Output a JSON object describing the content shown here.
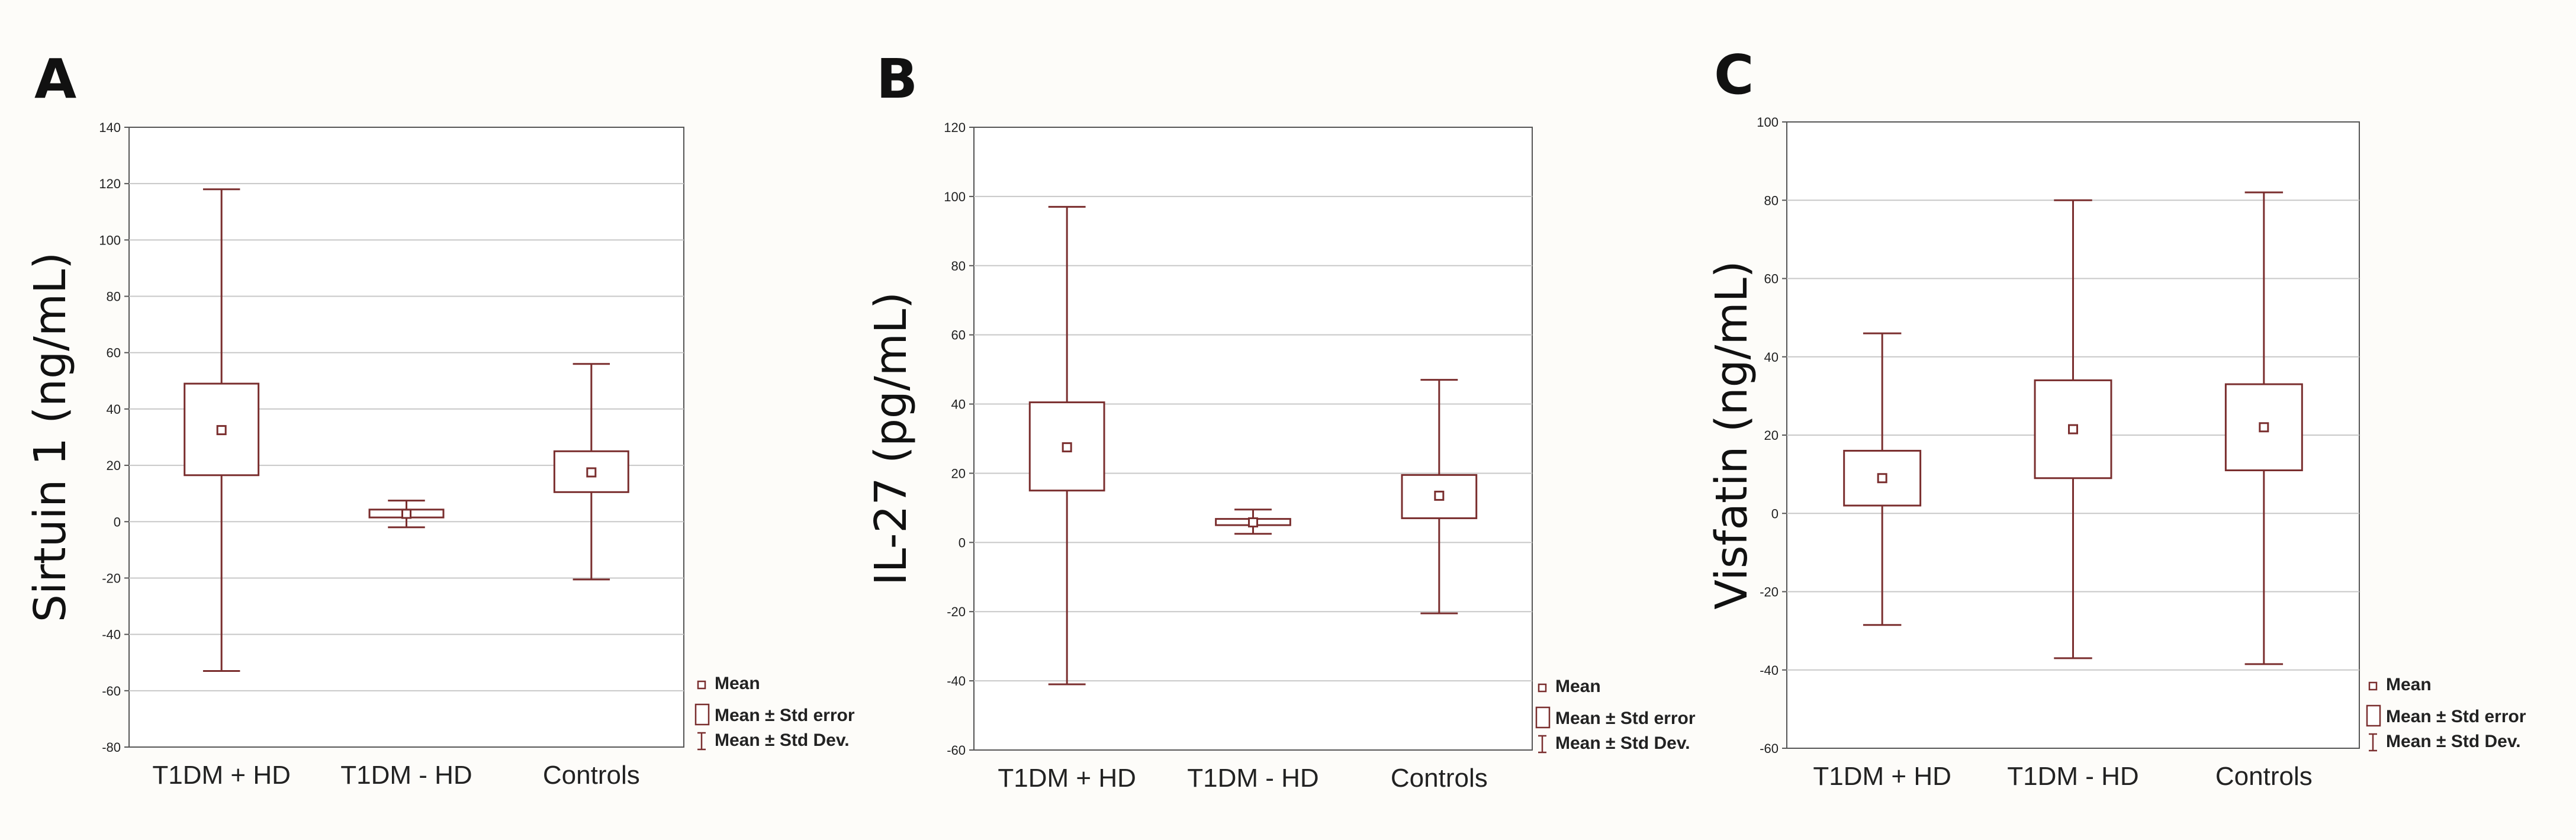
{
  "colors": {
    "mark": "#7a2e2e",
    "grid": "#c8c8c8",
    "frame": "#555555",
    "background": "#fdfcf9"
  },
  "legend": {
    "mean": "Mean",
    "se": "Mean ± Std error",
    "sd": "Mean ± Std Dev."
  },
  "chart_data": [
    {
      "panel_letter": "A",
      "type": "box",
      "ylabel": "Sirtuin 1 (ng/mL)",
      "ylim": [
        -80,
        140
      ],
      "yticks": [
        -80,
        -60,
        -40,
        -20,
        0,
        20,
        40,
        60,
        80,
        100,
        120,
        140
      ],
      "grid": true,
      "legend_position": "bottom-right",
      "categories": [
        "T1DM + HD",
        "T1DM - HD",
        "Controls"
      ],
      "series": [
        {
          "category": "T1DM + HD",
          "mean": 32.5,
          "se_low": 16.5,
          "se_high": 49,
          "sd_low": -53,
          "sd_high": 118
        },
        {
          "category": "T1DM - HD",
          "mean": 2.8,
          "se_low": 1.5,
          "se_high": 4.3,
          "sd_low": -2,
          "sd_high": 7.5
        },
        {
          "category": "Controls",
          "mean": 17.5,
          "se_low": 10.5,
          "se_high": 25,
          "sd_low": -20.5,
          "sd_high": 56
        }
      ]
    },
    {
      "panel_letter": "B",
      "type": "box",
      "ylabel": "IL-27 (pg/mL)",
      "ylim": [
        -60,
        120
      ],
      "yticks": [
        -60,
        -40,
        -20,
        0,
        20,
        40,
        60,
        80,
        100,
        120
      ],
      "grid": true,
      "legend_position": "bottom-right",
      "categories": [
        "T1DM + HD",
        "T1DM - HD",
        "Controls"
      ],
      "series": [
        {
          "category": "T1DM + HD",
          "mean": 27.5,
          "se_low": 15,
          "se_high": 40.5,
          "sd_low": -41,
          "sd_high": 97
        },
        {
          "category": "T1DM - HD",
          "mean": 5.8,
          "se_low": 5,
          "se_high": 6.8,
          "sd_low": 2.5,
          "sd_high": 9.5
        },
        {
          "category": "Controls",
          "mean": 13.5,
          "se_low": 7,
          "se_high": 19.5,
          "sd_low": -20.5,
          "sd_high": 47
        }
      ]
    },
    {
      "panel_letter": "C",
      "type": "box",
      "ylabel": "Visfatin (ng/mL)",
      "ylim": [
        -60,
        100
      ],
      "yticks": [
        -60,
        -40,
        -20,
        0,
        20,
        40,
        60,
        80,
        100
      ],
      "grid": true,
      "legend_position": "bottom-right",
      "categories": [
        "T1DM + HD",
        "T1DM - HD",
        "Controls"
      ],
      "series": [
        {
          "category": "T1DM + HD",
          "mean": 9,
          "se_low": 2,
          "se_high": 16,
          "sd_low": -28.5,
          "sd_high": 46
        },
        {
          "category": "T1DM - HD",
          "mean": 21.5,
          "se_low": 9,
          "se_high": 34,
          "sd_low": -37,
          "sd_high": 80
        },
        {
          "category": "Controls",
          "mean": 22,
          "se_low": 11,
          "se_high": 33,
          "sd_low": -38.5,
          "sd_high": 82
        }
      ]
    }
  ]
}
